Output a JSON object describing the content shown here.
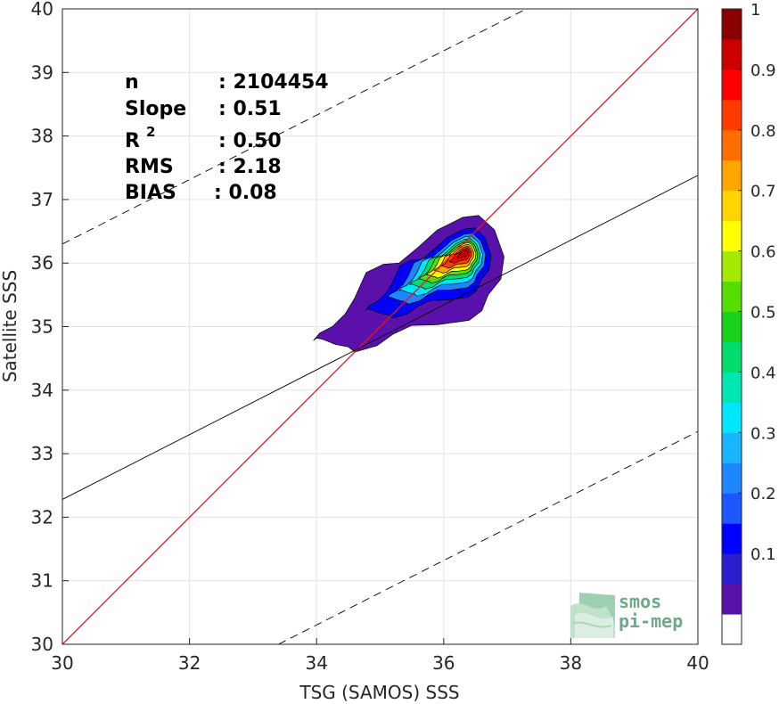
{
  "chart_data": {
    "type": "contour-density",
    "xlabel": "TSG (SAMOS) SSS",
    "ylabel": "Satellite SSS",
    "xlim": [
      30,
      40
    ],
    "ylim": [
      30,
      40
    ],
    "xticks": [
      "30",
      "32",
      "34",
      "36",
      "38",
      "40"
    ],
    "yticks": [
      "30",
      "31",
      "32",
      "33",
      "34",
      "35",
      "36",
      "37",
      "38",
      "39",
      "40"
    ],
    "grid": true,
    "stats": {
      "n_label": "n",
      "n_value": ": 2104454",
      "slope_label": "Slope",
      "slope_value": ": 0.51",
      "r2_label": "R",
      "r2_sup": "2",
      "r2_value": ": 0.50",
      "rms_label": "RMS",
      "rms_value": ": 2.18",
      "bias_label": "BIAS",
      "bias_value": ": 0.08"
    },
    "lines": [
      {
        "name": "identity",
        "color": "#e8141e",
        "style": "solid",
        "points": [
          [
            30,
            30
          ],
          [
            40,
            40
          ]
        ]
      },
      {
        "name": "fit",
        "color": "#000000",
        "style": "solid",
        "points": [
          [
            30,
            32.28
          ],
          [
            40,
            37.38
          ]
        ]
      },
      {
        "name": "upper",
        "color": "#000000",
        "style": "dashed",
        "points": [
          [
            30,
            36.3
          ],
          [
            37.3,
            40
          ]
        ]
      },
      {
        "name": "lower",
        "color": "#000000",
        "style": "dashed",
        "points": [
          [
            33.4,
            30
          ],
          [
            40,
            33.35
          ]
        ]
      }
    ],
    "density_peak": {
      "x": 36.3,
      "y": 36.15
    },
    "contour_levels": [
      0.05,
      0.1,
      0.15,
      0.2,
      0.25,
      0.3,
      0.35,
      0.4,
      0.45,
      0.5,
      0.55,
      0.6,
      0.65,
      0.7,
      0.75,
      0.8,
      0.85,
      0.9,
      0.95,
      1
    ],
    "colorbar": {
      "ticks": [
        "0.1",
        "0.2",
        "0.3",
        "0.4",
        "0.5",
        "0.6",
        "0.7",
        "0.8",
        "0.9",
        "1"
      ],
      "colors": [
        "#ffffff",
        "#5a10ab",
        "#2a1fcf",
        "#0000ff",
        "#1d57ff",
        "#1e86ff",
        "#17b6ff",
        "#00e6ff",
        "#00e6b3",
        "#00dd6e",
        "#1bd21b",
        "#55dd00",
        "#a5e800",
        "#ffff00",
        "#ffd400",
        "#ffa500",
        "#ff6e00",
        "#ff3c00",
        "#ff0000",
        "#cc0000",
        "#8b0000"
      ]
    },
    "logo_line1": "smos",
    "logo_line2": "pi-mep"
  }
}
